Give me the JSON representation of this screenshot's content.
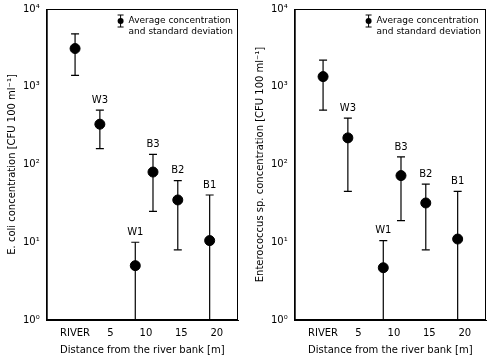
{
  "chart_data": [
    {
      "type": "scatter",
      "y_label": "E. coli concentration [CFU 100 ml⁻¹]",
      "x_label": "Distance from the river bank [m]",
      "x": [
        0,
        3.5,
        8.5,
        11,
        14.5,
        19
      ],
      "series": [
        {
          "name": "Average concentration and standard deviation",
          "color": "#000000",
          "marker": "circle",
          "values": [
            3100,
            330,
            5,
            80,
            35,
            10.5
          ],
          "errors": [
            1700,
            170,
            5,
            55,
            27,
            30
          ],
          "point_labels": [
            "",
            "W3",
            "W1",
            "B3",
            "B2",
            "B1"
          ]
        }
      ],
      "xlim": [
        -4,
        23
      ],
      "xticks": [
        {
          "value": 0,
          "label": "RIVER"
        },
        5,
        10,
        15,
        20
      ],
      "ylim": [
        1,
        10000
      ],
      "yticks": [
        {
          "value": 1,
          "label": "10⁰"
        },
        {
          "value": 10,
          "label": "10¹"
        },
        {
          "value": 100,
          "label": "10²"
        },
        {
          "value": 1000,
          "label": "10³"
        },
        {
          "value": 10000,
          "label": "10⁴"
        }
      ],
      "log": "y",
      "grid": false,
      "legend": "upper right"
    },
    {
      "type": "scatter",
      "y_label": "Enterococcus sp. concentration [CFU 100 ml⁻¹]",
      "x_label": "Distance from the river bank [m]",
      "x": [
        0,
        3.5,
        8.5,
        11,
        14.5,
        19
      ],
      "series": [
        {
          "name": "Average concentration and standard deviation",
          "color": "#000000",
          "marker": "circle",
          "values": [
            1350,
            220,
            4.7,
            72,
            32,
            11
          ],
          "errors": [
            850,
            175,
            5.8,
            53,
            24,
            34
          ],
          "point_labels": [
            "",
            "W3",
            "W1",
            "B3",
            "B2",
            "B1"
          ]
        }
      ],
      "xlim": [
        -4,
        23
      ],
      "xticks": [
        {
          "value": 0,
          "label": "RIVER"
        },
        5,
        10,
        15,
        20
      ],
      "ylim": [
        1,
        10000
      ],
      "yticks": [
        {
          "value": 1,
          "label": "10⁰"
        },
        {
          "value": 10,
          "label": "10¹"
        },
        {
          "value": 100,
          "label": "10²"
        },
        {
          "value": 1000,
          "label": "10³"
        },
        {
          "value": 10000,
          "label": "10⁴"
        }
      ],
      "log": "y",
      "grid": false,
      "legend": "upper right"
    }
  ]
}
